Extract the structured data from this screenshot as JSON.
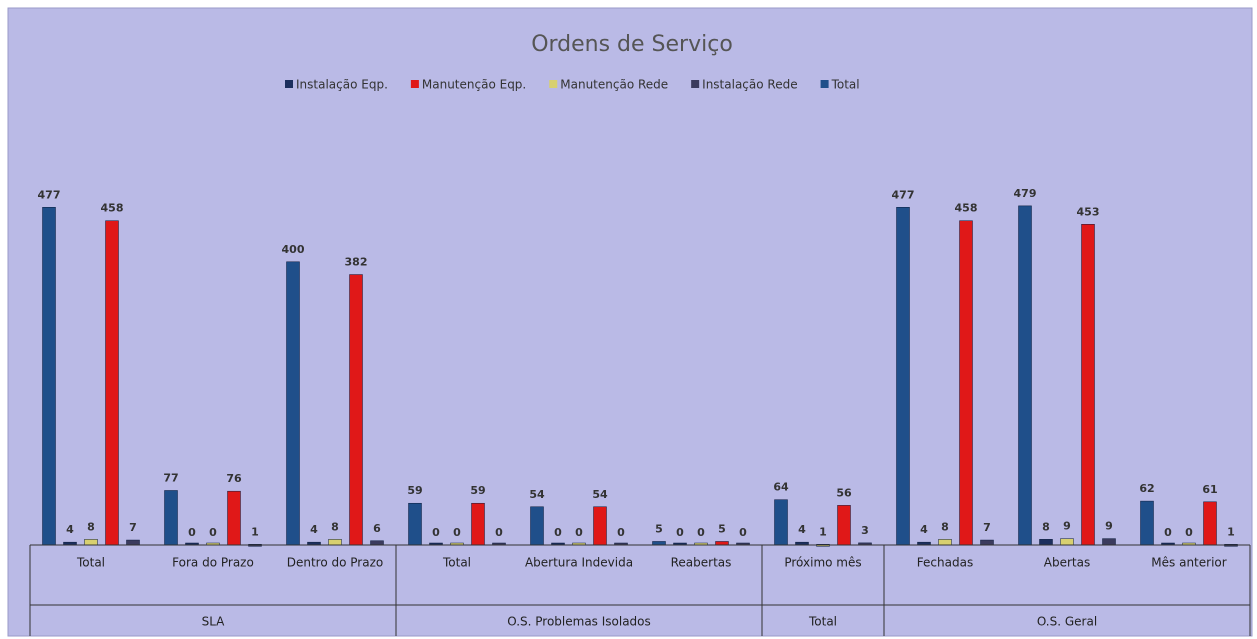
{
  "chart_data": {
    "type": "bar",
    "title": "Ordens de Serviço",
    "groups": [
      {
        "name": "SLA",
        "categories": [
          "Total",
          "Fora do Prazo",
          "Dentro do Prazo"
        ]
      },
      {
        "name": "O.S. Problemas Isolados",
        "categories": [
          "Total",
          "Abertura Indevida",
          "Reabertas"
        ]
      },
      {
        "name": "Total",
        "categories": [
          "Próximo mês"
        ]
      },
      {
        "name": "O.S. Geral",
        "categories": [
          "Fechadas",
          "Abertas",
          "Mês anterior"
        ]
      }
    ],
    "series": [
      {
        "name": "Instalação Eqp.",
        "color": "#1c2f5e",
        "values": [
          4,
          0,
          4,
          0,
          0,
          0,
          4,
          4,
          8,
          0
        ]
      },
      {
        "name": "Manutenção Eqp.",
        "color": "#e01818",
        "values": [
          458,
          76,
          382,
          59,
          54,
          5,
          56,
          458,
          453,
          61
        ]
      },
      {
        "name": "Manutenção Rede",
        "color": "#d8d070",
        "values": [
          8,
          0,
          8,
          0,
          0,
          0,
          1,
          8,
          9,
          0
        ]
      },
      {
        "name": "Instalação Rede",
        "color": "#3b3b5e",
        "values": [
          7,
          1,
          6,
          0,
          0,
          0,
          3,
          7,
          9,
          1
        ]
      },
      {
        "name": "Total",
        "color": "#1f4f8a",
        "values": [
          477,
          77,
          400,
          59,
          54,
          5,
          64,
          477,
          479,
          62
        ]
      }
    ],
    "ylim": [
      0,
      500
    ],
    "legend": "top"
  }
}
